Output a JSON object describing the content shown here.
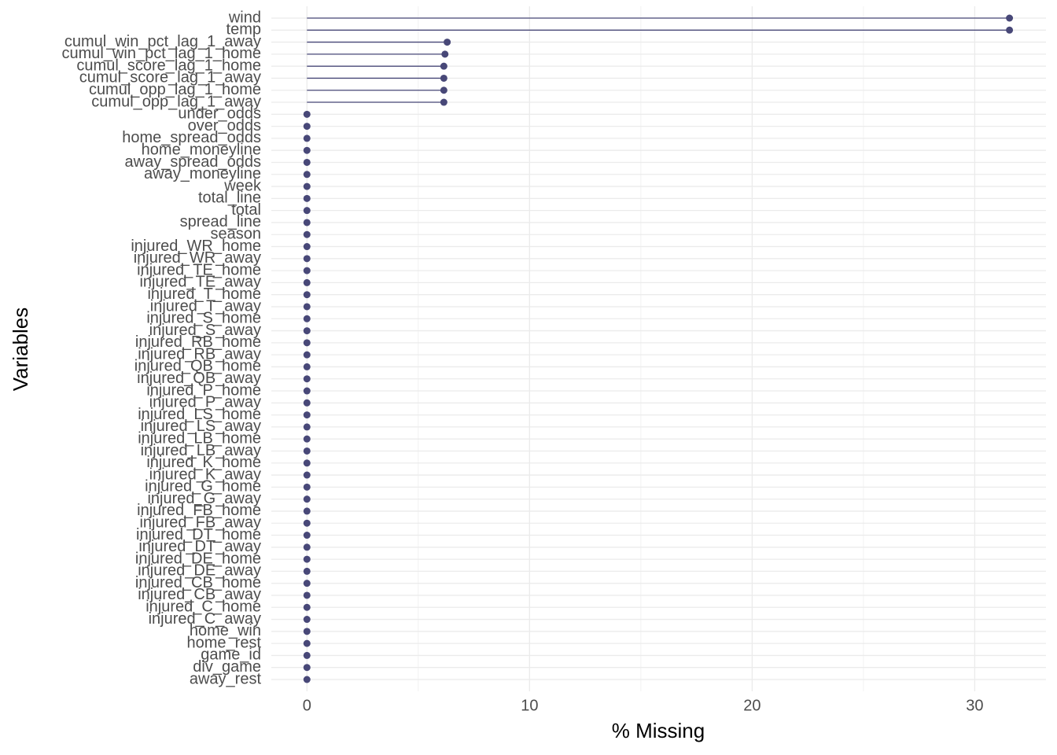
{
  "chart_data": {
    "type": "lollipop",
    "categories": [
      "wind",
      "temp",
      "cumul_win_pct_lag_1_away",
      "cumul_win_pct_lag_1_home",
      "cumul_score_lag_1_home",
      "cumul_score_lag_1_away",
      "cumul_opp_lag_1_home",
      "cumul_opp_lag_1_away",
      "under_odds",
      "over_odds",
      "home_spread_odds",
      "home_moneyline",
      "away_spread_odds",
      "away_moneyline",
      "week",
      "total_line",
      "total",
      "spread_line",
      "season",
      "injured_WR_home",
      "injured_WR_away",
      "injured_TE_home",
      "injured_TE_away",
      "injured_T_home",
      "injured_T_away",
      "injured_S_home",
      "injured_S_away",
      "injured_RB_home",
      "injured_RB_away",
      "injured_QB_home",
      "injured_QB_away",
      "injured_P_home",
      "injured_P_away",
      "injured_LS_home",
      "injured_LS_away",
      "injured_LB_home",
      "injured_LB_away",
      "injured_K_home",
      "injured_K_away",
      "injured_G_home",
      "injured_G_away",
      "injured_FB_home",
      "injured_FB_away",
      "injured_DT_home",
      "injured_DT_away",
      "injured_DE_home",
      "injured_DE_away",
      "injured_CB_home",
      "injured_CB_away",
      "injured_C_home",
      "injured_C_away",
      "home_win",
      "home_rest",
      "game_id",
      "div_game",
      "away_rest"
    ],
    "values": [
      31.56,
      31.56,
      6.3,
      6.2,
      6.15,
      6.15,
      6.15,
      6.15,
      0,
      0,
      0,
      0,
      0,
      0,
      0,
      0,
      0,
      0,
      0,
      0,
      0,
      0,
      0,
      0,
      0,
      0,
      0,
      0,
      0,
      0,
      0,
      0,
      0,
      0,
      0,
      0,
      0,
      0,
      0,
      0,
      0,
      0,
      0,
      0,
      0,
      0,
      0,
      0,
      0,
      0,
      0,
      0,
      0,
      0,
      0,
      0
    ],
    "color": "#484878",
    "x_label": "% Missing",
    "y_label": "Variables",
    "xlim": [
      -1.6,
      33.2
    ],
    "xticks": [
      0,
      10,
      20,
      30
    ],
    "xminorticks": [
      5,
      15,
      25
    ],
    "grid": true
  }
}
